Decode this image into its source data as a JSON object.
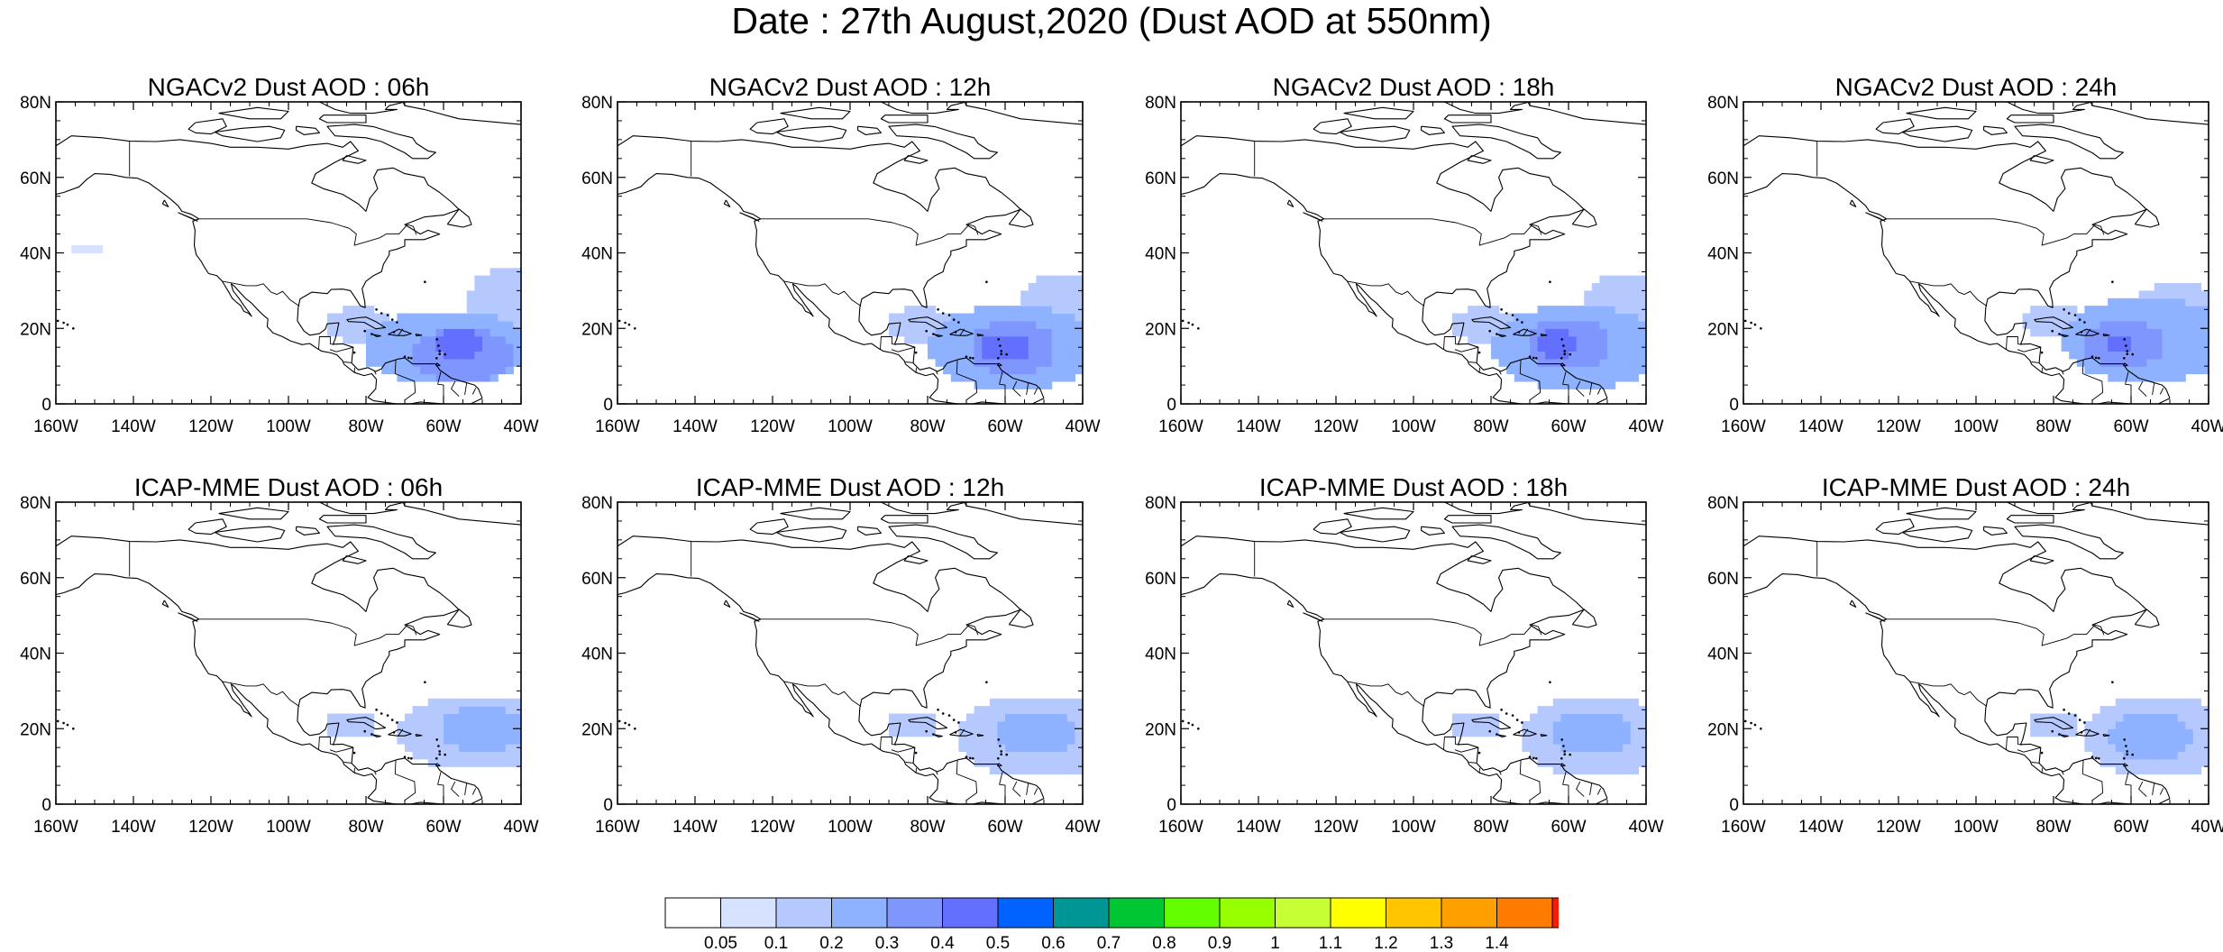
{
  "title": "Date : 27th August,2020 (Dust AOD at 550nm)",
  "colors": {
    "coast": "#000000",
    "contour_fills": [
      "#ffffff",
      "#d6e2ff",
      "#b5c9ff",
      "#8eb2ff",
      "#7f96ff",
      "#6370ff",
      "#0063ff",
      "#009696",
      "#00c633",
      "#63ff00",
      "#96ff00",
      "#c6ff33",
      "#ffff00",
      "#ffc600",
      "#ffa000",
      "#ff7c00",
      "#ff1900"
    ]
  },
  "chart_data": {
    "type": "map",
    "variable": "Dust AOD at 550nm",
    "date": "27th August,2020",
    "domain": {
      "lon_range": [
        -160,
        -40
      ],
      "lat_range": [
        0,
        80
      ]
    },
    "x_ticks": [
      "160W",
      "140W",
      "120W",
      "100W",
      "80W",
      "60W",
      "40W"
    ],
    "y_ticks": [
      "0",
      "20N",
      "40N",
      "60N",
      "80N"
    ],
    "legend": {
      "position": "bottom-center",
      "levels": [
        "0.05",
        "0.1",
        "0.2",
        "0.3",
        "0.4",
        "0.5",
        "0.6",
        "0.7",
        "0.8",
        "0.9",
        "1",
        "1.1",
        "1.2",
        "1.3",
        "1.4"
      ]
    },
    "panels": [
      {
        "title": "NGACv2 Dust AOD : 06h",
        "model": "NGACv2",
        "lead": "06h",
        "blobs": [
          {
            "lon": -59,
            "lat": 15,
            "rlon": 22,
            "rlat": 10,
            "aod": 0.25
          },
          {
            "lon": -44,
            "lat": 26,
            "rlon": 10,
            "rlat": 10,
            "aod": 0.15
          },
          {
            "lon": -55,
            "lat": 13,
            "rlon": 13,
            "rlat": 7,
            "aod": 0.35
          },
          {
            "lon": -82,
            "lat": 21,
            "rlon": 8,
            "rlat": 5,
            "aod": 0.15
          },
          {
            "lon": -56,
            "lat": 16,
            "rlon": 6,
            "rlat": 4,
            "aod": 0.45
          },
          {
            "lon": -152,
            "lat": 41,
            "rlon": 5,
            "rlat": 1.5,
            "aod": 0.07
          }
        ]
      },
      {
        "title": "NGACv2 Dust AOD : 12h",
        "model": "NGACv2",
        "lead": "12h",
        "blobs": [
          {
            "lon": -58,
            "lat": 15,
            "rlon": 22,
            "rlat": 11,
            "aod": 0.25
          },
          {
            "lon": -46,
            "lat": 26,
            "rlon": 10,
            "rlat": 9,
            "aod": 0.15
          },
          {
            "lon": -58,
            "lat": 15,
            "rlon": 11,
            "rlat": 7,
            "aod": 0.35
          },
          {
            "lon": -82,
            "lat": 21,
            "rlon": 8,
            "rlat": 5,
            "aod": 0.15
          },
          {
            "lon": -60,
            "lat": 15,
            "rlon": 6,
            "rlat": 4,
            "aod": 0.45
          }
        ]
      },
      {
        "title": "NGACv2 Dust AOD : 18h",
        "model": "NGACv2",
        "lead": "18h",
        "blobs": [
          {
            "lon": -58,
            "lat": 15,
            "rlon": 22,
            "rlat": 11,
            "aod": 0.25
          },
          {
            "lon": -46,
            "lat": 25,
            "rlon": 10,
            "rlat": 10,
            "aod": 0.15
          },
          {
            "lon": -60,
            "lat": 16,
            "rlon": 11,
            "rlat": 7,
            "aod": 0.35
          },
          {
            "lon": -82,
            "lat": 21,
            "rlon": 8,
            "rlat": 5,
            "aod": 0.15
          },
          {
            "lon": -63,
            "lat": 16,
            "rlon": 5,
            "rlat": 4,
            "aod": 0.45
          }
        ]
      },
      {
        "title": "NGACv2 Dust AOD : 24h",
        "model": "NGACv2",
        "lead": "24h",
        "blobs": [
          {
            "lon": -56,
            "lat": 17,
            "rlon": 22,
            "rlat": 11,
            "aod": 0.25
          },
          {
            "lon": -48,
            "lat": 24,
            "rlon": 12,
            "rlat": 8,
            "aod": 0.15
          },
          {
            "lon": -62,
            "lat": 16,
            "rlon": 11,
            "rlat": 6,
            "aod": 0.35
          },
          {
            "lon": -80,
            "lat": 22,
            "rlon": 8,
            "rlat": 5,
            "aod": 0.15
          },
          {
            "lon": -63,
            "lat": 16,
            "rlon": 4,
            "rlat": 3,
            "aod": 0.45
          }
        ]
      },
      {
        "title": "ICAP-MME Dust AOD : 06h",
        "model": "ICAP-MME",
        "lead": "06h",
        "blobs": [
          {
            "lon": -52,
            "lat": 19,
            "rlon": 20,
            "rlat": 10,
            "aod": 0.15
          },
          {
            "lon": -50,
            "lat": 20,
            "rlon": 11,
            "rlat": 6,
            "aod": 0.25
          },
          {
            "lon": -84,
            "lat": 21,
            "rlon": 6,
            "rlat": 4,
            "aod": 0.1
          }
        ]
      },
      {
        "title": "ICAP-MME Dust AOD : 12h",
        "model": "ICAP-MME",
        "lead": "12h",
        "blobs": [
          {
            "lon": -52,
            "lat": 18,
            "rlon": 20,
            "rlat": 11,
            "aod": 0.15
          },
          {
            "lon": -52,
            "lat": 19,
            "rlon": 11,
            "rlat": 6,
            "aod": 0.25
          },
          {
            "lon": -84,
            "lat": 21,
            "rlon": 6,
            "rlat": 4,
            "aod": 0.1
          }
        ]
      },
      {
        "title": "ICAP-MME Dust AOD : 18h",
        "model": "ICAP-MME",
        "lead": "18h",
        "blobs": [
          {
            "lon": -53,
            "lat": 18,
            "rlon": 20,
            "rlat": 11,
            "aod": 0.15
          },
          {
            "lon": -54,
            "lat": 19,
            "rlon": 11,
            "rlat": 6,
            "aod": 0.25
          },
          {
            "lon": -84,
            "lat": 21,
            "rlon": 6,
            "rlat": 4,
            "aod": 0.1
          }
        ]
      },
      {
        "title": "ICAP-MME Dust AOD : 24h",
        "model": "ICAP-MME",
        "lead": "24h",
        "blobs": [
          {
            "lon": -53,
            "lat": 18,
            "rlon": 20,
            "rlat": 11,
            "aod": 0.15
          },
          {
            "lon": -55,
            "lat": 18,
            "rlon": 11,
            "rlat": 6,
            "aod": 0.25
          },
          {
            "lon": -80,
            "lat": 21,
            "rlon": 6,
            "rlat": 4,
            "aod": 0.1
          }
        ]
      }
    ]
  }
}
